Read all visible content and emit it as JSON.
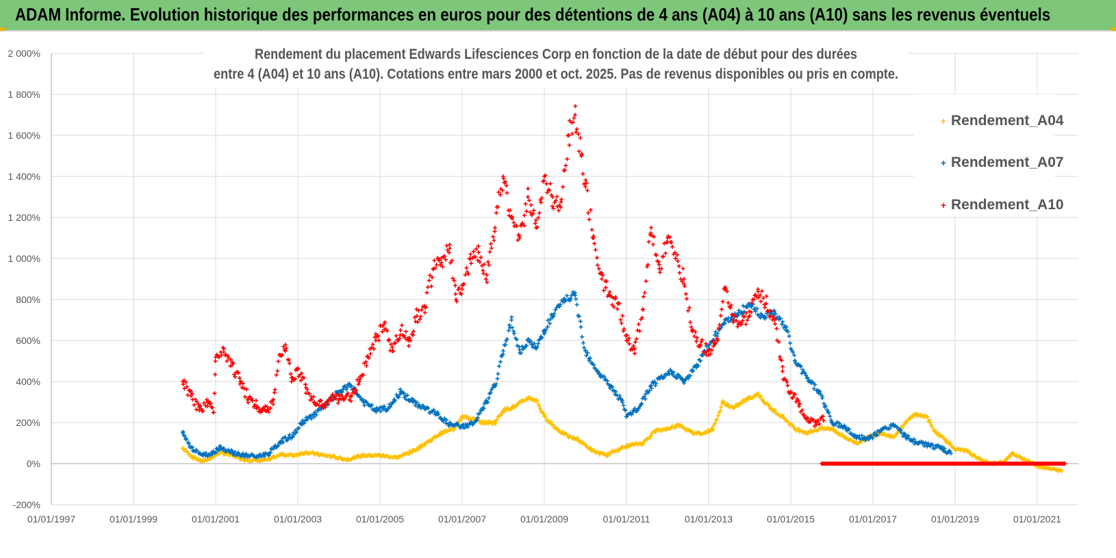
{
  "banner": {
    "title": "ADAM Informe. Evolution historique des performances en euros pour des détentions de 4 ans (A04) à 10 ans (A10) sans les revenus éventuels"
  },
  "colors": {
    "banner_bg": "#7dc67a",
    "A04": "#ffc000",
    "A07": "#0070c0",
    "A10": "#ff0000",
    "grid": "#d9d9d9",
    "axis": "#a6a6a6"
  },
  "chart_data": {
    "type": "scatter",
    "title_lines": [
      "Rendement du placement Edwards Lifesciences Corp en fonction de la date de début pour des durées",
      "entre 4 (A04) et 10 ans (A10). Cotations entre mars 2000 et oct. 2025. Pas de revenus disponibles ou pris en compte."
    ],
    "ylim": [
      -200,
      2000
    ],
    "yticks": [
      -200,
      0,
      200,
      400,
      600,
      800,
      1000,
      1200,
      1400,
      1600,
      1800,
      2000
    ],
    "ytick_labels": [
      "-200%",
      "0%",
      "200%",
      "400%",
      "600%",
      "800%",
      "1 000%",
      "1 200%",
      "1 400%",
      "1 600%",
      "1 800%",
      "2 000%"
    ],
    "xlim": [
      1997.0,
      2022.0
    ],
    "xticks": [
      1997,
      1999,
      2001,
      2003,
      2005,
      2007,
      2009,
      2011,
      2013,
      2015,
      2017,
      2019,
      2021
    ],
    "xtick_labels": [
      "01/01/1997",
      "01/01/1999",
      "01/01/2001",
      "01/01/2003",
      "01/01/2005",
      "01/01/2007",
      "01/01/2009",
      "01/01/2011",
      "01/01/2013",
      "01/01/2015",
      "01/01/2017",
      "01/01/2019",
      "01/01/2021"
    ],
    "legend": {
      "placement": "top-right",
      "entries": [
        "Rendement_A04",
        "Rendement_A07",
        "Rendement_A10"
      ]
    },
    "series": [
      {
        "name": "Rendement_A04",
        "color": "#ffc000",
        "points": [
          [
            2000.2,
            75
          ],
          [
            2000.45,
            30
          ],
          [
            2000.7,
            10
          ],
          [
            2000.9,
            30
          ],
          [
            2001.1,
            55
          ],
          [
            2001.4,
            40
          ],
          [
            2001.7,
            20
          ],
          [
            2002.0,
            15
          ],
          [
            2002.3,
            20
          ],
          [
            2002.6,
            45
          ],
          [
            2002.9,
            40
          ],
          [
            2003.2,
            55
          ],
          [
            2003.5,
            45
          ],
          [
            2003.8,
            35
          ],
          [
            2004.2,
            20
          ],
          [
            2004.6,
            40
          ],
          [
            2005.0,
            40
          ],
          [
            2005.4,
            30
          ],
          [
            2005.8,
            60
          ],
          [
            2006.2,
            110
          ],
          [
            2006.5,
            150
          ],
          [
            2006.8,
            170
          ],
          [
            2007.0,
            230
          ],
          [
            2007.2,
            220
          ],
          [
            2007.5,
            200
          ],
          [
            2007.8,
            200
          ],
          [
            2008.0,
            260
          ],
          [
            2008.3,
            280
          ],
          [
            2008.6,
            320
          ],
          [
            2008.8,
            310
          ],
          [
            2009.0,
            230
          ],
          [
            2009.3,
            170
          ],
          [
            2009.6,
            130
          ],
          [
            2009.8,
            120
          ],
          [
            2010.2,
            60
          ],
          [
            2010.5,
            40
          ],
          [
            2010.8,
            70
          ],
          [
            2011.1,
            90
          ],
          [
            2011.4,
            100
          ],
          [
            2011.7,
            160
          ],
          [
            2012.0,
            170
          ],
          [
            2012.3,
            190
          ],
          [
            2012.6,
            150
          ],
          [
            2012.9,
            150
          ],
          [
            2013.1,
            170
          ],
          [
            2013.35,
            300
          ],
          [
            2013.6,
            270
          ],
          [
            2013.9,
            310
          ],
          [
            2014.2,
            340
          ],
          [
            2014.5,
            270
          ],
          [
            2014.8,
            230
          ],
          [
            2015.1,
            170
          ],
          [
            2015.4,
            150
          ],
          [
            2015.7,
            170
          ],
          [
            2016.0,
            170
          ],
          [
            2016.3,
            130
          ],
          [
            2016.6,
            100
          ],
          [
            2016.9,
            130
          ],
          [
            2017.2,
            150
          ],
          [
            2017.5,
            130
          ],
          [
            2017.8,
            200
          ],
          [
            2018.0,
            240
          ],
          [
            2018.3,
            230
          ],
          [
            2018.5,
            160
          ],
          [
            2018.8,
            110
          ],
          [
            2019.0,
            70
          ],
          [
            2019.3,
            60
          ],
          [
            2019.6,
            20
          ],
          [
            2019.9,
            0
          ],
          [
            2020.2,
            10
          ],
          [
            2020.4,
            50
          ],
          [
            2020.7,
            20
          ],
          [
            2021.0,
            -10
          ],
          [
            2021.3,
            -25
          ],
          [
            2021.6,
            -35
          ]
        ]
      },
      {
        "name": "Rendement_A07",
        "color": "#0070c0",
        "points": [
          [
            2000.2,
            150
          ],
          [
            2000.4,
            80
          ],
          [
            2000.7,
            40
          ],
          [
            2000.9,
            50
          ],
          [
            2001.1,
            80
          ],
          [
            2001.4,
            55
          ],
          [
            2001.7,
            40
          ],
          [
            2002.0,
            35
          ],
          [
            2002.3,
            50
          ],
          [
            2002.6,
            110
          ],
          [
            2002.9,
            140
          ],
          [
            2003.1,
            200
          ],
          [
            2003.4,
            240
          ],
          [
            2003.7,
            290
          ],
          [
            2004.0,
            350
          ],
          [
            2004.3,
            380
          ],
          [
            2004.6,
            300
          ],
          [
            2004.9,
            260
          ],
          [
            2005.2,
            270
          ],
          [
            2005.5,
            350
          ],
          [
            2005.8,
            300
          ],
          [
            2006.1,
            270
          ],
          [
            2006.4,
            240
          ],
          [
            2006.7,
            190
          ],
          [
            2007.0,
            180
          ],
          [
            2007.3,
            200
          ],
          [
            2007.6,
            300
          ],
          [
            2007.8,
            380
          ],
          [
            2008.0,
            550
          ],
          [
            2008.2,
            700
          ],
          [
            2008.4,
            540
          ],
          [
            2008.6,
            600
          ],
          [
            2008.8,
            560
          ],
          [
            2009.0,
            650
          ],
          [
            2009.2,
            720
          ],
          [
            2009.5,
            800
          ],
          [
            2009.75,
            820
          ],
          [
            2010.0,
            550
          ],
          [
            2010.3,
            450
          ],
          [
            2010.6,
            380
          ],
          [
            2010.9,
            300
          ],
          [
            2011.0,
            230
          ],
          [
            2011.3,
            270
          ],
          [
            2011.6,
            380
          ],
          [
            2011.9,
            420
          ],
          [
            2012.1,
            450
          ],
          [
            2012.4,
            400
          ],
          [
            2012.7,
            470
          ],
          [
            2012.9,
            550
          ],
          [
            2013.1,
            600
          ],
          [
            2013.4,
            700
          ],
          [
            2013.7,
            720
          ],
          [
            2014.0,
            780
          ],
          [
            2014.3,
            720
          ],
          [
            2014.6,
            740
          ],
          [
            2014.9,
            650
          ],
          [
            2015.1,
            500
          ],
          [
            2015.4,
            420
          ],
          [
            2015.7,
            350
          ],
          [
            2016.0,
            200
          ],
          [
            2016.3,
            180
          ],
          [
            2016.6,
            130
          ],
          [
            2016.9,
            120
          ],
          [
            2017.2,
            160
          ],
          [
            2017.5,
            190
          ],
          [
            2017.8,
            130
          ],
          [
            2018.1,
            100
          ],
          [
            2018.4,
            90
          ],
          [
            2018.7,
            70
          ],
          [
            2018.9,
            50
          ]
        ]
      },
      {
        "name": "Rendement_A10",
        "color": "#ff0000",
        "points": [
          [
            2000.2,
            400
          ],
          [
            2000.4,
            330
          ],
          [
            2000.6,
            260
          ],
          [
            2000.8,
            300
          ],
          [
            2000.95,
            250
          ],
          [
            2001.0,
            520
          ],
          [
            2001.2,
            560
          ],
          [
            2001.4,
            480
          ],
          [
            2001.6,
            400
          ],
          [
            2001.8,
            320
          ],
          [
            2002.0,
            280
          ],
          [
            2002.2,
            260
          ],
          [
            2002.4,
            290
          ],
          [
            2002.55,
            530
          ],
          [
            2002.7,
            580
          ],
          [
            2002.85,
            420
          ],
          [
            2003.0,
            460
          ],
          [
            2003.2,
            370
          ],
          [
            2003.4,
            300
          ],
          [
            2003.6,
            280
          ],
          [
            2003.8,
            320
          ],
          [
            2004.0,
            310
          ],
          [
            2004.3,
            330
          ],
          [
            2004.5,
            400
          ],
          [
            2004.7,
            520
          ],
          [
            2004.9,
            600
          ],
          [
            2005.1,
            680
          ],
          [
            2005.3,
            550
          ],
          [
            2005.5,
            650
          ],
          [
            2005.7,
            600
          ],
          [
            2005.9,
            720
          ],
          [
            2006.1,
            760
          ],
          [
            2006.3,
            950
          ],
          [
            2006.5,
            980
          ],
          [
            2006.7,
            1050
          ],
          [
            2006.85,
            800
          ],
          [
            2007.0,
            850
          ],
          [
            2007.2,
            1000
          ],
          [
            2007.4,
            1030
          ],
          [
            2007.6,
            920
          ],
          [
            2007.8,
            1150
          ],
          [
            2008.0,
            1400
          ],
          [
            2008.2,
            1200
          ],
          [
            2008.4,
            1100
          ],
          [
            2008.6,
            1300
          ],
          [
            2008.8,
            1150
          ],
          [
            2009.0,
            1400
          ],
          [
            2009.2,
            1300
          ],
          [
            2009.4,
            1250
          ],
          [
            2009.6,
            1600
          ],
          [
            2009.75,
            1700
          ],
          [
            2009.9,
            1500
          ],
          [
            2010.0,
            1350
          ],
          [
            2010.2,
            1100
          ],
          [
            2010.4,
            900
          ],
          [
            2010.6,
            820
          ],
          [
            2010.8,
            780
          ],
          [
            2011.0,
            600
          ],
          [
            2011.2,
            560
          ],
          [
            2011.4,
            750
          ],
          [
            2011.6,
            1150
          ],
          [
            2011.8,
            950
          ],
          [
            2012.0,
            1100
          ],
          [
            2012.2,
            1000
          ],
          [
            2012.4,
            900
          ],
          [
            2012.6,
            650
          ],
          [
            2012.8,
            580
          ],
          [
            2013.0,
            550
          ],
          [
            2013.2,
            600
          ],
          [
            2013.4,
            850
          ],
          [
            2013.6,
            700
          ],
          [
            2013.8,
            680
          ],
          [
            2014.0,
            720
          ],
          [
            2014.2,
            850
          ],
          [
            2014.4,
            780
          ],
          [
            2014.6,
            700
          ],
          [
            2014.8,
            450
          ],
          [
            2015.0,
            350
          ],
          [
            2015.2,
            280
          ],
          [
            2015.4,
            220
          ],
          [
            2015.6,
            200
          ],
          [
            2015.8,
            210
          ]
        ]
      }
    ],
    "A10_zero_band": {
      "from": 2015.75,
      "to": 2021.7,
      "value": 0
    }
  }
}
